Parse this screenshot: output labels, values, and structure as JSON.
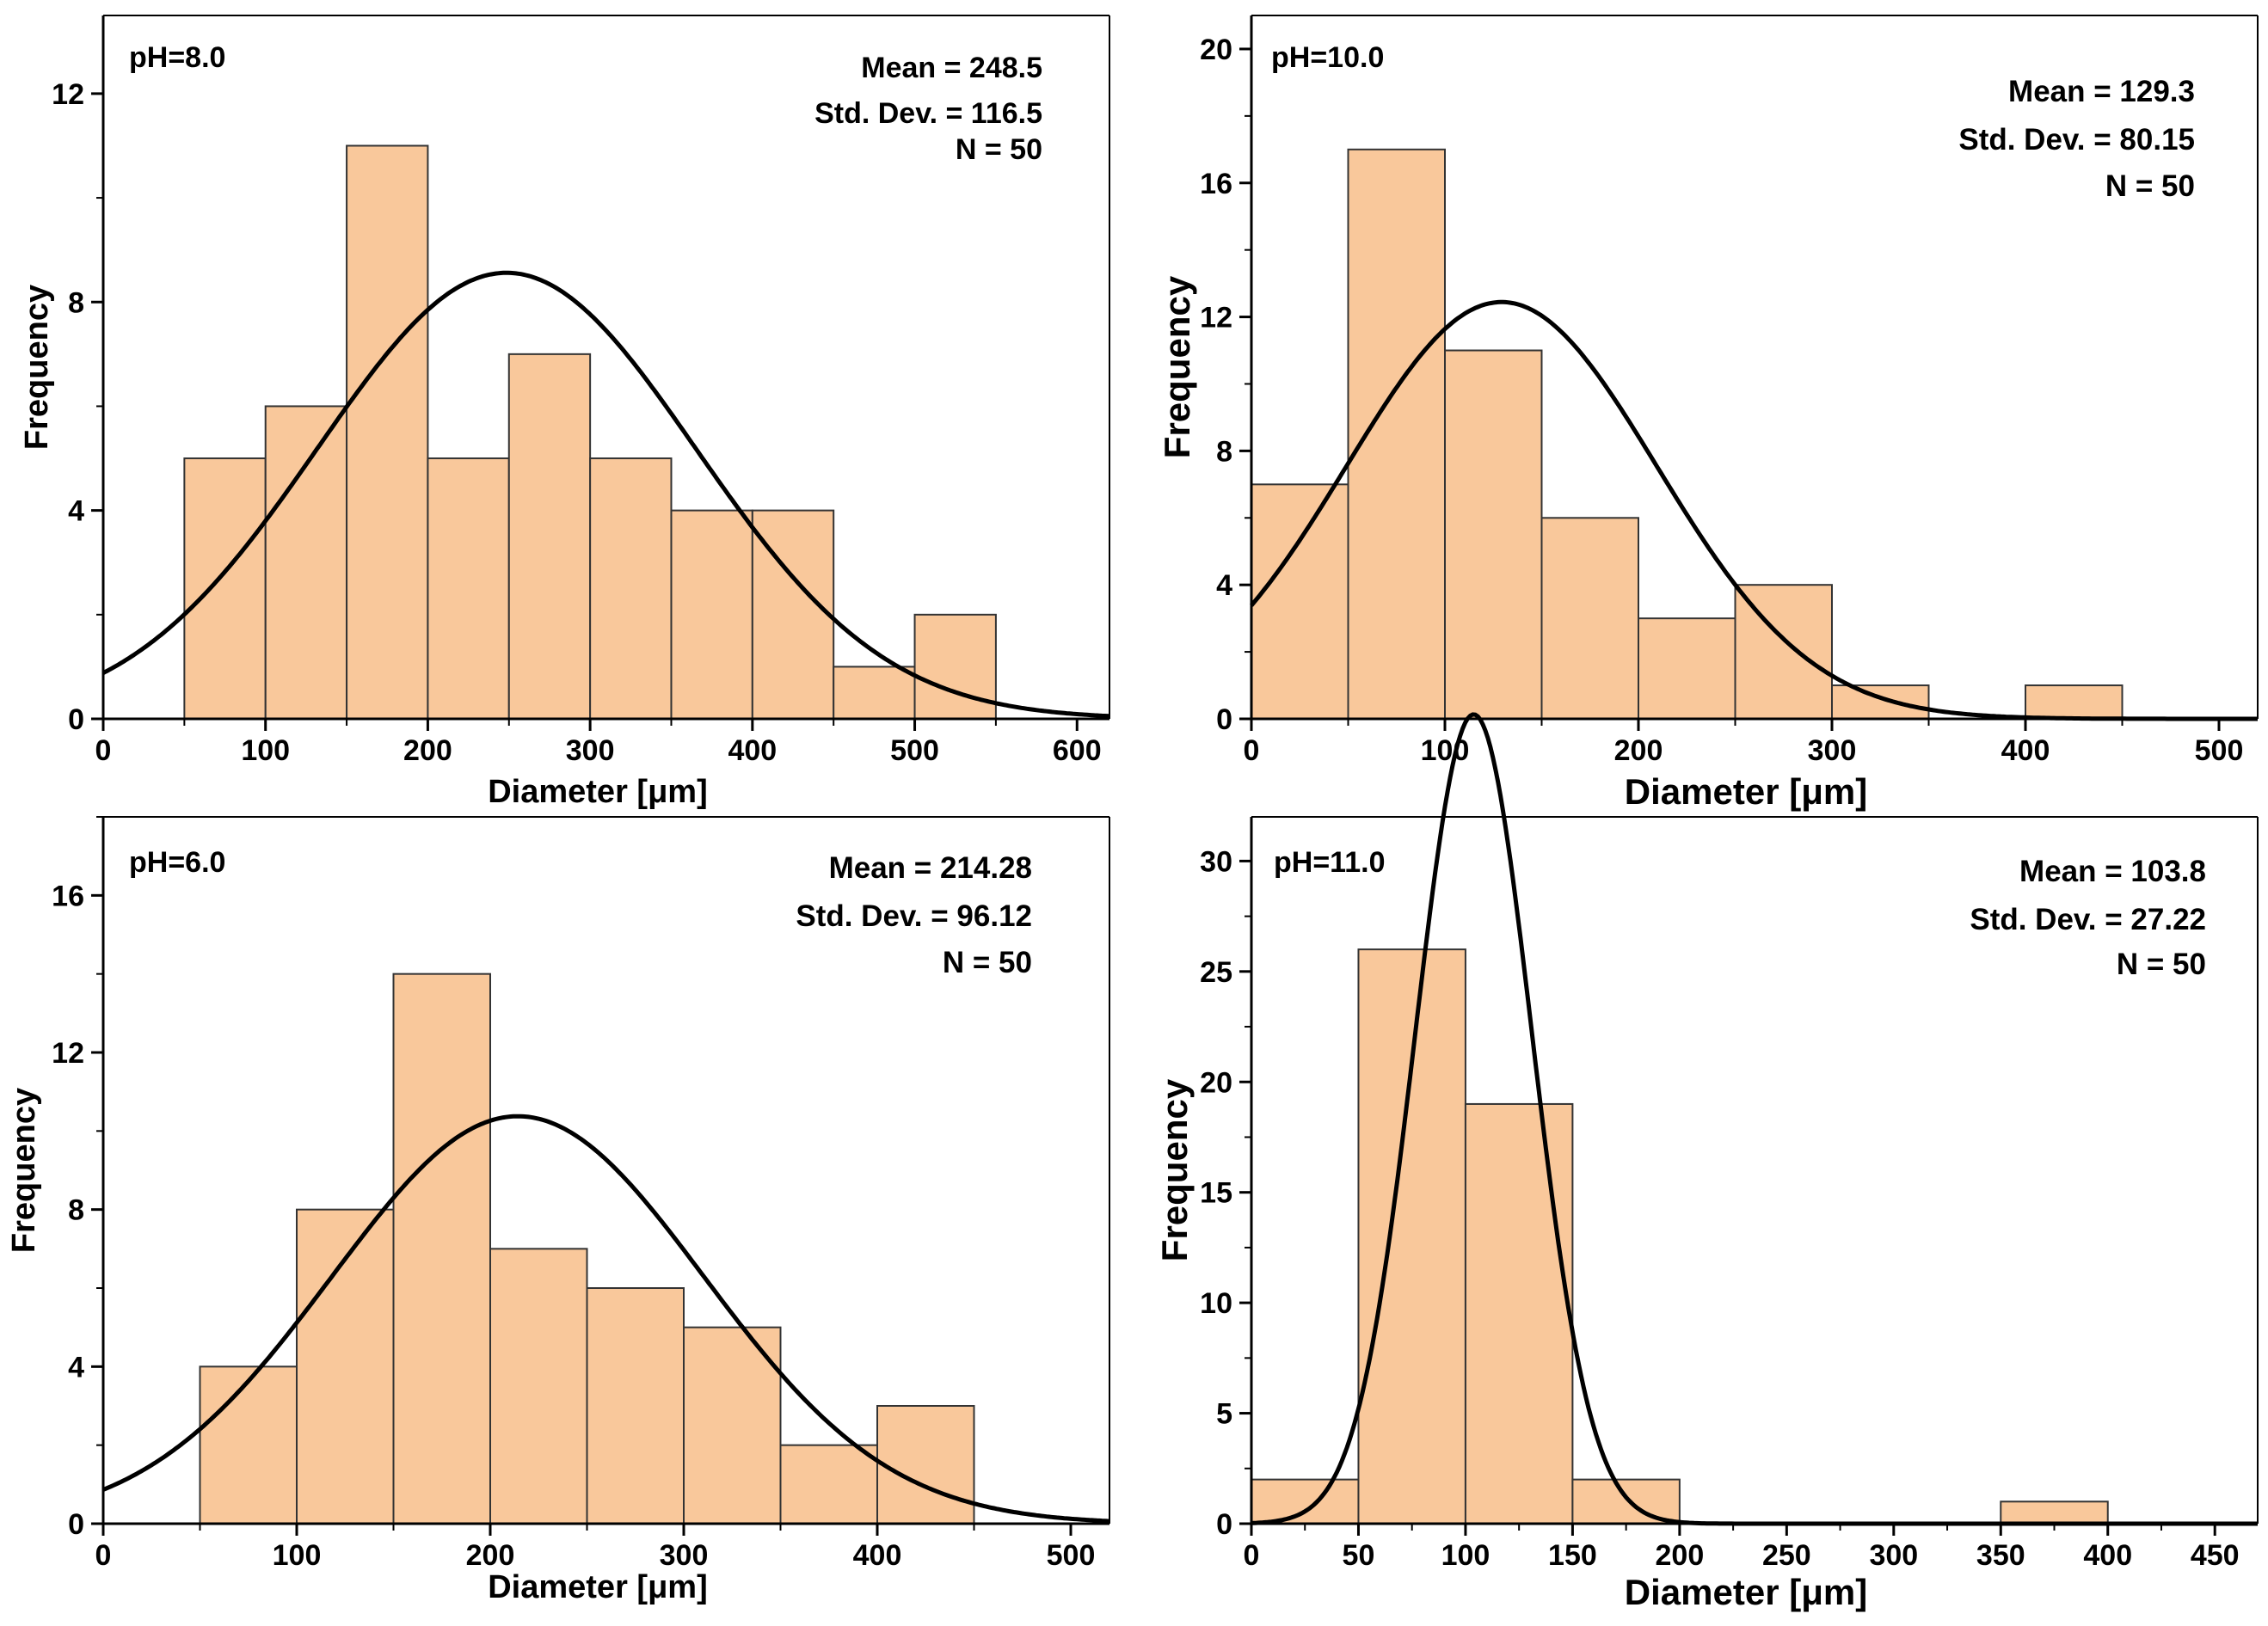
{
  "colors": {
    "bar_fill": "#F9C89B",
    "bar_stroke": "#333333",
    "curve": "#000000",
    "axis": "#000000"
  },
  "chart_data": [
    {
      "type": "bar",
      "panel_label": "pH=8.0",
      "bin_edges": [
        50,
        100,
        150,
        200,
        250,
        300,
        350,
        400,
        450,
        500,
        550
      ],
      "values": [
        5,
        6,
        11,
        5,
        7,
        5,
        4,
        4,
        1,
        2
      ],
      "stats": {
        "mean_label": "Mean = 248.5",
        "std_label": "Std. Dev. = 116.5",
        "n_label": "N = 50"
      },
      "fit": {
        "type": "normal",
        "mean": 248.5,
        "std": 116.5,
        "n": 50,
        "bin_width": 50
      },
      "xlabel": "Diameter [μm]",
      "ylabel": "Frequency",
      "xlim": [
        0,
        620
      ],
      "ylim": [
        0,
        13.5
      ],
      "xticks": [
        0,
        100,
        200,
        300,
        400,
        500,
        600
      ],
      "yticks": [
        0,
        4,
        8,
        12
      ],
      "xtick_labels": [
        "0",
        "100",
        "200",
        "300",
        "400",
        "500",
        "600"
      ],
      "ytick_labels": [
        "0",
        "4",
        "8",
        "12"
      ],
      "x_minor_step": 50,
      "y_minor_step": 2
    },
    {
      "type": "bar",
      "panel_label": "pH=10.0",
      "bin_edges": [
        0,
        50,
        100,
        150,
        200,
        250,
        300,
        350,
        400,
        450
      ],
      "values": [
        7,
        17,
        11,
        6,
        3,
        4,
        1,
        0,
        1
      ],
      "stats": {
        "mean_label": "Mean = 129.3",
        "std_label": "Std. Dev. = 80.15",
        "n_label": "N = 50"
      },
      "fit": {
        "type": "normal",
        "mean": 129.3,
        "std": 80.15,
        "n": 50,
        "bin_width": 50
      },
      "xlabel": "Diameter [μm]",
      "ylabel": "Frequency",
      "xlim": [
        0,
        520
      ],
      "ylim": [
        0,
        21
      ],
      "xticks": [
        0,
        100,
        200,
        300,
        400,
        500
      ],
      "yticks": [
        0,
        4,
        8,
        12,
        16,
        20
      ],
      "xtick_labels": [
        "0",
        "100",
        "200",
        "300",
        "400",
        "500"
      ],
      "ytick_labels": [
        "0",
        "4",
        "8",
        "12",
        "16",
        "20"
      ],
      "x_minor_step": 50,
      "y_minor_step": 2
    },
    {
      "type": "bar",
      "panel_label": "pH=6.0",
      "bin_edges": [
        50,
        100,
        150,
        200,
        250,
        300,
        350,
        400,
        450
      ],
      "values": [
        4,
        8,
        14,
        7,
        6,
        5,
        2,
        3
      ],
      "stats": {
        "mean_label": "Mean = 214.28",
        "std_label": "Std. Dev. = 96.12",
        "n_label": "N = 50"
      },
      "fit": {
        "type": "normal",
        "mean": 214.28,
        "std": 96.12,
        "n": 50,
        "bin_width": 50
      },
      "xlabel": "Diameter [μm]",
      "ylabel": "Frequency",
      "xlim": [
        0,
        520
      ],
      "ylim": [
        0,
        18
      ],
      "xticks": [
        0,
        100,
        200,
        300,
        400,
        500
      ],
      "yticks": [
        0,
        4,
        8,
        12,
        16
      ],
      "xtick_labels": [
        "0",
        "100",
        "200",
        "300",
        "400",
        "500"
      ],
      "ytick_labels": [
        "0",
        "4",
        "8",
        "12",
        "16"
      ],
      "x_minor_step": 50,
      "y_minor_step": 2
    },
    {
      "type": "bar",
      "panel_label": "pH=11.0",
      "bin_edges": [
        0,
        50,
        100,
        150,
        200,
        250,
        300,
        350,
        400
      ],
      "values": [
        2,
        26,
        19,
        2,
        0,
        0,
        0,
        1
      ],
      "stats": {
        "mean_label": "Mean = 103.8",
        "std_label": "Std. Dev. = 27.22",
        "n_label": "N = 50"
      },
      "fit": {
        "type": "normal",
        "mean": 103.8,
        "std": 27.22,
        "n": 50,
        "bin_width": 50
      },
      "xlabel": "Diameter [μm]",
      "ylabel": "Frequency",
      "xlim": [
        0,
        470
      ],
      "ylim": [
        0,
        32
      ],
      "xticks": [
        0,
        50,
        100,
        150,
        200,
        250,
        300,
        350,
        400,
        450
      ],
      "yticks": [
        0,
        5,
        10,
        15,
        20,
        25,
        30
      ],
      "xtick_labels": [
        "0",
        "50",
        "100",
        "150",
        "200",
        "250",
        "300",
        "350",
        "400",
        "450"
      ],
      "ytick_labels": [
        "0",
        "5",
        "10",
        "15",
        "20",
        "25",
        "30"
      ],
      "x_minor_step": 25,
      "y_minor_step": 2.5
    }
  ]
}
